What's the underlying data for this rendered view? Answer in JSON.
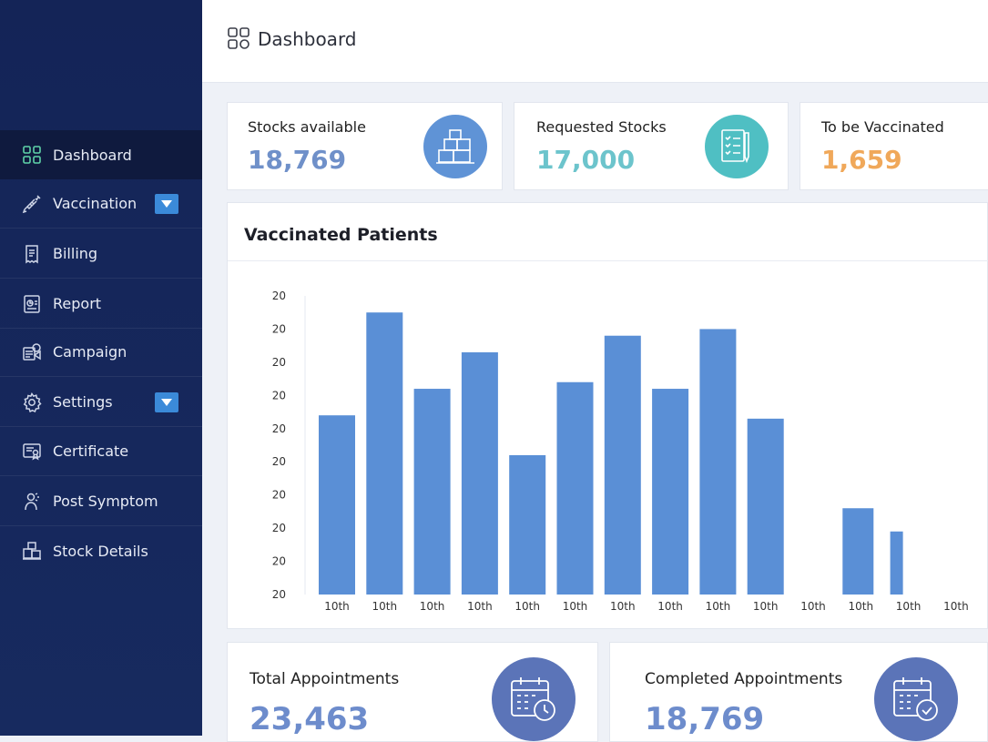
{
  "header": {
    "title": "Dashboard"
  },
  "sidebar": {
    "items": [
      {
        "label": "Dashboard",
        "icon": "grid-icon",
        "active": true
      },
      {
        "label": "Vaccination",
        "icon": "syringe-icon",
        "has_dropdown": true
      },
      {
        "label": "Billing",
        "icon": "receipt-icon"
      },
      {
        "label": "Report",
        "icon": "report-icon"
      },
      {
        "label": "Campaign",
        "icon": "campaign-icon"
      },
      {
        "label": "Settings",
        "icon": "gear-icon",
        "has_dropdown": true
      },
      {
        "label": "Certificate",
        "icon": "certificate-icon"
      },
      {
        "label": "Post Symptom",
        "icon": "symptom-icon"
      },
      {
        "label": "Stock Details",
        "icon": "boxes-icon"
      }
    ]
  },
  "stats": [
    {
      "label": "Stocks available",
      "value": "18,769",
      "color": "#6f90c9",
      "icon": "boxes-icon",
      "icon_bg": "#5f93d6"
    },
    {
      "label": "Requested Stocks",
      "value": "17,000",
      "color": "#6cc4cc",
      "icon": "checklist-icon",
      "icon_bg": "#4fbfc3"
    },
    {
      "label": "To be Vaccinated",
      "value": "1,659",
      "color": "#f0a85a"
    }
  ],
  "chart": {
    "title": "Vaccinated Patients",
    "chart_data": {
      "type": "bar",
      "y_tick_labels": [
        "20",
        "20",
        "20",
        "20",
        "20",
        "20",
        "20",
        "20",
        "20",
        "20"
      ],
      "categories": [
        "10th",
        "10th",
        "10th",
        "10th",
        "10th",
        "10th",
        "10th",
        "10th",
        "10th",
        "10th",
        "10th",
        "10th",
        "10th",
        "10th"
      ],
      "values": [
        5.4,
        8.5,
        6.2,
        7.3,
        4.2,
        6.4,
        7.8,
        6.2,
        8.0,
        5.3,
        0,
        2.6,
        1.9,
        0
      ],
      "ylim": [
        0,
        9
      ],
      "bar_color": "#5a8fd6",
      "grid": false
    }
  },
  "bottom": [
    {
      "label": "Total Appointments",
      "value": "23,463",
      "icon": "calendar-clock-icon"
    },
    {
      "label": "Completed Appointments",
      "value": "18,769",
      "icon": "calendar-check-icon"
    }
  ]
}
